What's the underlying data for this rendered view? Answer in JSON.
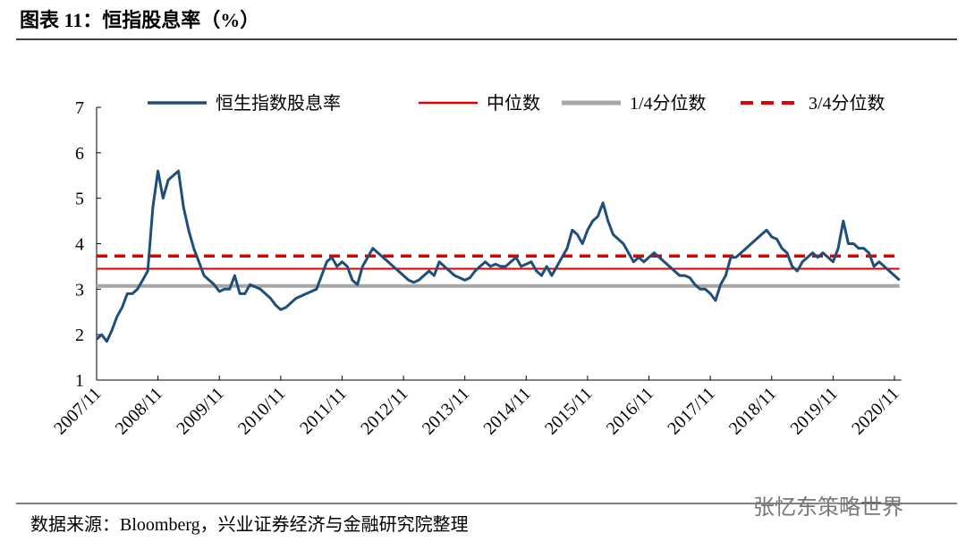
{
  "chart_data": {
    "type": "line",
    "title": "图表 11：恒指股息率（%）",
    "source": "数据来源：Bloomberg，兴业证券经济与金融研究院整理",
    "watermark": "张忆东策略世界",
    "categories": [
      "2007/11",
      null,
      null,
      null,
      null,
      null,
      null,
      null,
      null,
      null,
      null,
      null,
      "2008/11",
      null,
      null,
      null,
      null,
      null,
      null,
      null,
      null,
      null,
      null,
      null,
      "2009/11",
      null,
      null,
      null,
      null,
      null,
      null,
      null,
      null,
      null,
      null,
      null,
      "2010/11",
      null,
      null,
      null,
      null,
      null,
      null,
      null,
      null,
      null,
      null,
      null,
      "2011/11",
      null,
      null,
      null,
      null,
      null,
      null,
      null,
      null,
      null,
      null,
      null,
      "2012/11",
      null,
      null,
      null,
      null,
      null,
      null,
      null,
      null,
      null,
      null,
      null,
      "2013/11",
      null,
      null,
      null,
      null,
      null,
      null,
      null,
      null,
      null,
      null,
      null,
      "2014/11",
      null,
      null,
      null,
      null,
      null,
      null,
      null,
      null,
      null,
      null,
      null,
      "2015/11",
      null,
      null,
      null,
      null,
      null,
      null,
      null,
      null,
      null,
      null,
      null,
      "2016/11",
      null,
      null,
      null,
      null,
      null,
      null,
      null,
      null,
      null,
      null,
      null,
      "2017/11",
      null,
      null,
      null,
      null,
      null,
      null,
      null,
      null,
      null,
      null,
      null,
      "2018/11",
      null,
      null,
      null,
      null,
      null,
      null,
      null,
      null,
      null,
      null,
      null,
      "2019/11",
      null,
      null,
      null,
      null,
      null,
      null,
      null,
      null,
      null,
      null,
      null,
      "2020/11",
      null
    ],
    "series": [
      {
        "name": "恒生指数股息率",
        "color": "#1f4e79",
        "values": [
          1.9,
          2.0,
          1.85,
          2.1,
          2.4,
          2.6,
          2.9,
          2.9,
          3.0,
          3.2,
          3.4,
          4.8,
          5.6,
          5.0,
          5.4,
          5.5,
          5.6,
          4.8,
          4.3,
          3.9,
          3.6,
          3.3,
          3.2,
          3.1,
          2.95,
          3.0,
          3.0,
          3.3,
          2.9,
          2.9,
          3.1,
          3.05,
          3.0,
          2.9,
          2.8,
          2.65,
          2.55,
          2.6,
          2.7,
          2.8,
          2.85,
          2.9,
          2.95,
          3.0,
          3.3,
          3.6,
          3.7,
          3.5,
          3.6,
          3.5,
          3.2,
          3.1,
          3.5,
          3.7,
          3.9,
          3.8,
          3.7,
          3.6,
          3.5,
          3.4,
          3.3,
          3.2,
          3.15,
          3.2,
          3.3,
          3.4,
          3.3,
          3.6,
          3.5,
          3.4,
          3.3,
          3.25,
          3.2,
          3.25,
          3.4,
          3.5,
          3.6,
          3.5,
          3.55,
          3.5,
          3.5,
          3.6,
          3.7,
          3.5,
          3.55,
          3.6,
          3.4,
          3.3,
          3.5,
          3.3,
          3.5,
          3.7,
          3.9,
          4.3,
          4.2,
          4.0,
          4.3,
          4.5,
          4.6,
          4.9,
          4.5,
          4.2,
          4.1,
          4.0,
          3.8,
          3.6,
          3.7,
          3.6,
          3.7,
          3.8,
          3.7,
          3.6,
          3.5,
          3.4,
          3.3,
          3.3,
          3.25,
          3.1,
          3.0,
          3.0,
          2.9,
          2.75,
          3.1,
          3.3,
          3.7,
          3.7,
          3.8,
          3.9,
          4.0,
          4.1,
          4.2,
          4.3,
          4.15,
          4.1,
          3.9,
          3.8,
          3.5,
          3.4,
          3.6,
          3.7,
          3.8,
          3.7,
          3.8,
          3.7,
          3.6,
          3.9,
          4.5,
          4.0,
          4.0,
          3.9,
          3.9,
          3.8,
          3.5,
          3.6,
          3.5,
          3.4,
          3.3,
          3.2
        ]
      }
    ],
    "reference_lines": [
      {
        "name": "中位数",
        "color": "#e00000",
        "style": "solid",
        "value": 3.45
      },
      {
        "name": "1/4分位数",
        "color": "#a6a6a6",
        "style": "solid",
        "value": 3.07
      },
      {
        "name": "3/4分位数",
        "color": "#e00000",
        "style": "dashed",
        "value": 3.73
      }
    ],
    "ylim": [
      1,
      7
    ],
    "yticks": [
      1,
      2,
      3,
      4,
      5,
      6,
      7
    ],
    "grid": false,
    "legend": "top"
  }
}
